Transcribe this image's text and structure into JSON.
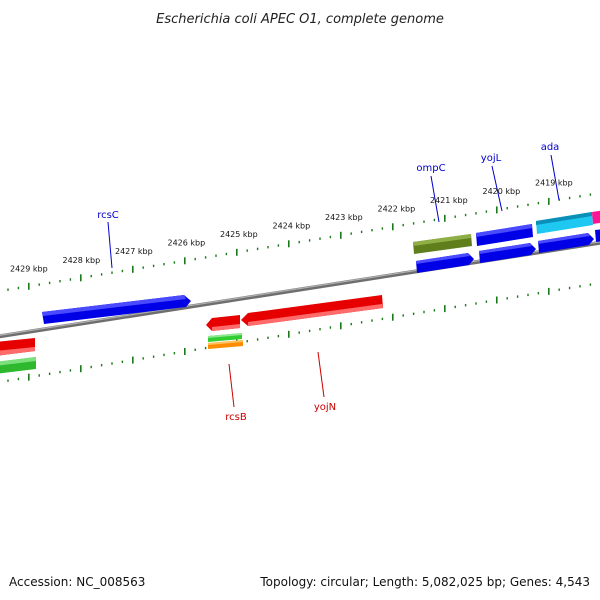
{
  "title": "Escherichia coli APEC O1, complete genome",
  "footer": {
    "accession": "Accession: NC_008563",
    "topology": "Topology: circular; Length: 5,082,025 bp; Genes: 4,543"
  },
  "colors": {
    "forward_strand": "#0000ee",
    "reverse_strand": "#ee0000",
    "backbone": "#808080",
    "tick": "#1a7a1a",
    "olive_feature": "#6b8e23",
    "cyan_feature": "#1ec8f0",
    "magenta_feature": "#ff1493",
    "green_feature": "#32cd32",
    "orange_feature": "#ff8c00"
  },
  "ticks": [
    {
      "label": "2429 kbp"
    },
    {
      "label": "2428 kbp"
    },
    {
      "label": "2427 kbp"
    },
    {
      "label": "2426 kbp"
    },
    {
      "label": "2425 kbp"
    },
    {
      "label": "2424 kbp"
    },
    {
      "label": "2423 kbp"
    },
    {
      "label": "2422 kbp"
    },
    {
      "label": "2421 kbp"
    },
    {
      "label": "2420 kbp"
    },
    {
      "label": "2419 kbp"
    }
  ],
  "gene_labels": [
    {
      "name": "rcsC",
      "strand": "forward"
    },
    {
      "name": "ompC",
      "strand": "forward"
    },
    {
      "name": "yojL",
      "strand": "forward"
    },
    {
      "name": "ada",
      "strand": "forward"
    },
    {
      "name": "rcsB",
      "strand": "reverse"
    },
    {
      "name": "yojN",
      "strand": "reverse"
    }
  ]
}
